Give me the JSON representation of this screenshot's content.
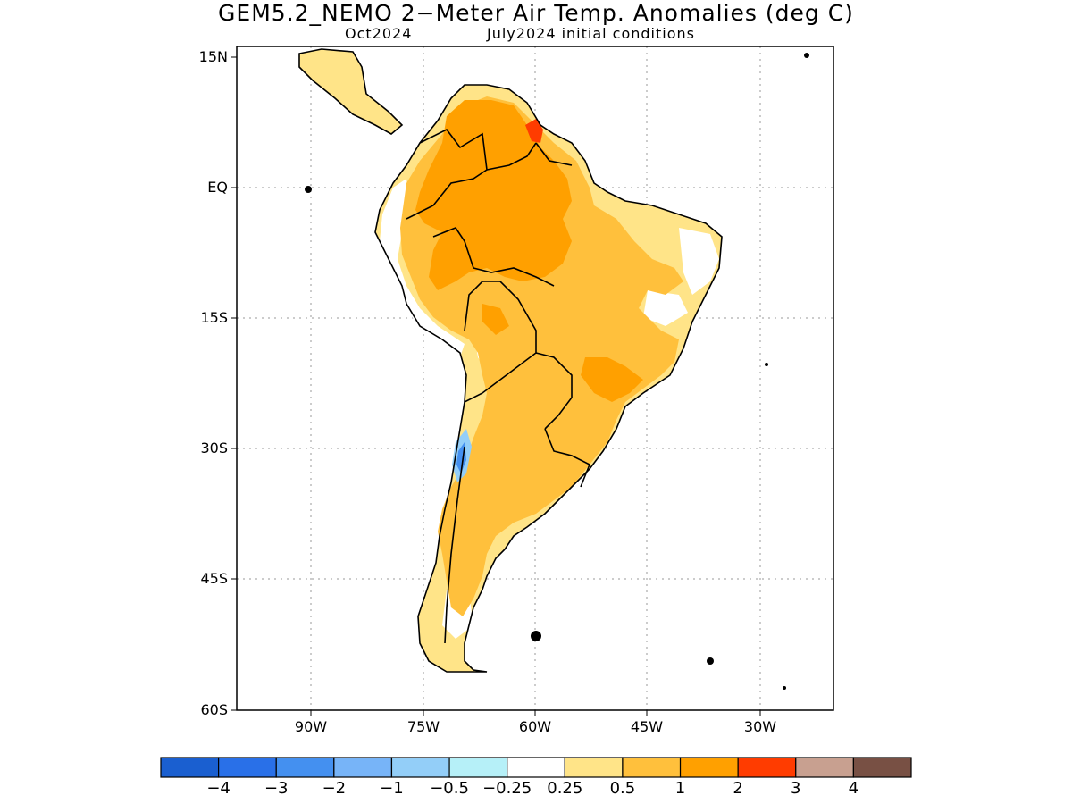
{
  "title": "GEM5.2_NEMO 2−Meter Air Temp. Anomalies (deg C)",
  "subtitle_left": "Oct2024",
  "subtitle_right": "July2024 initial conditions",
  "lat_labels": [
    "15N",
    "EQ",
    "15S",
    "30S",
    "45S",
    "60S"
  ],
  "lon_labels": [
    "90W",
    "75W",
    "60W",
    "45W",
    "30W"
  ],
  "colorbar": {
    "colors": [
      "#1a5fd0",
      "#2970e8",
      "#4490f0",
      "#77b4f8",
      "#93cef8",
      "#b6f0f8",
      "#ffffff",
      "#ffe488",
      "#ffc03c",
      "#ffa000",
      "#ff3c00",
      "#c8a090",
      "#785044"
    ],
    "labels": [
      "−4",
      "−3",
      "−2",
      "−1",
      "−0.5",
      "−0.25",
      "0.25",
      "0.5",
      "1",
      "2",
      "3",
      "4"
    ]
  }
}
